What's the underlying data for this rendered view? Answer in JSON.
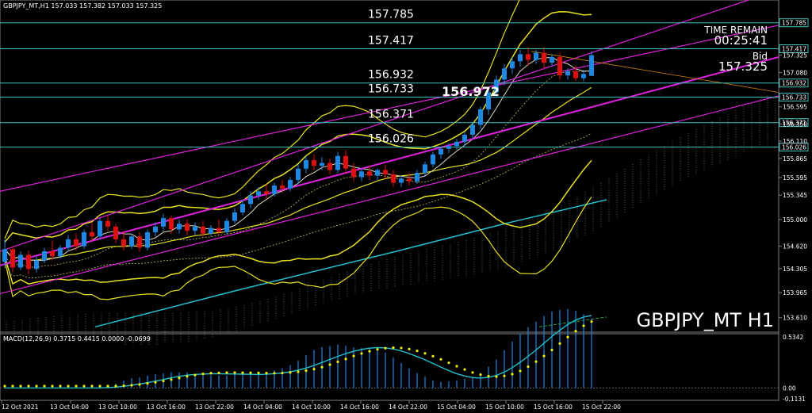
{
  "header": {
    "symbol_info": "GBPJPY_MT,H1  157.033 157.382 157.033 157.325"
  },
  "watermark": "GBPJPY_MT H1",
  "timer": {
    "label": "TIME REMAIN",
    "value": "00:25:41",
    "bid_label": "Bid",
    "bid_value": "157.325"
  },
  "current_label": "156.972",
  "levels": [
    {
      "price": 157.785,
      "label": "157.785",
      "tag": "157.785"
    },
    {
      "price": 157.417,
      "label": "157.417",
      "tag": "157.417"
    },
    {
      "price": 156.932,
      "label": "156.932",
      "tag": "156.932"
    },
    {
      "price": 156.733,
      "label": "156.733",
      "tag": "156.733"
    },
    {
      "price": 156.371,
      "label": "156.371",
      "tag": "156.371"
    },
    {
      "price": 156.026,
      "label": "156.026",
      "tag": "156.026"
    }
  ],
  "price_axis": [
    "157.325",
    "157.080",
    "156.595",
    "156.350",
    "156.110",
    "155.865",
    "155.595",
    "155.345",
    "155.000",
    "154.620",
    "154.305",
    "153.965",
    "153.610"
  ],
  "macd": {
    "label": "MACD(12,26,9) 0.3715 0.4415 0.0000 -0.0699",
    "axis": [
      "0.5342",
      "0.00",
      "-0.1131"
    ]
  },
  "time_axis": [
    "12 Oct 2021",
    "13 Oct 04:00",
    "13 Oct 10:00",
    "13 Oct 16:00",
    "13 Oct 22:00",
    "14 Oct 04:00",
    "14 Oct 10:00",
    "14 Oct 16:00",
    "14 Oct 22:00",
    "15 Oct 04:00",
    "15 Oct 10:00",
    "15 Oct 16:00",
    "15 Oct 22:00"
  ],
  "colors": {
    "background": "#000000",
    "level_line": "#40c0c0",
    "channel": "#e020e0",
    "bollinger": "#e8e020",
    "up_candle": "#1e88e5",
    "down_candle": "#e01010",
    "ma_teal": "#20c0d0",
    "macd_main": "#20c0d0",
    "macd_signal": "#f0f000"
  },
  "chart_data": {
    "type": "candlestick",
    "instrument": "GBPJPY_MT",
    "timeframe": "H1",
    "ylim": [
      153.45,
      157.95
    ],
    "candles": [
      {
        "o": 154.4,
        "h": 154.72,
        "c": 154.58,
        "l": 154.33
      },
      {
        "o": 154.58,
        "h": 154.62,
        "c": 154.32,
        "l": 154.25
      },
      {
        "o": 154.32,
        "h": 154.55,
        "c": 154.5,
        "l": 154.28
      },
      {
        "o": 154.5,
        "h": 154.56,
        "c": 154.3,
        "l": 154.22
      },
      {
        "o": 154.3,
        "h": 154.48,
        "c": 154.42,
        "l": 154.25
      },
      {
        "o": 154.42,
        "h": 154.6,
        "c": 154.55,
        "l": 154.38
      },
      {
        "o": 154.55,
        "h": 154.7,
        "c": 154.48,
        "l": 154.42
      },
      {
        "o": 154.48,
        "h": 154.64,
        "c": 154.6,
        "l": 154.45
      },
      {
        "o": 154.6,
        "h": 154.78,
        "c": 154.72,
        "l": 154.55
      },
      {
        "o": 154.72,
        "h": 154.8,
        "c": 154.62,
        "l": 154.56
      },
      {
        "o": 154.62,
        "h": 154.86,
        "c": 154.82,
        "l": 154.58
      },
      {
        "o": 154.82,
        "h": 154.95,
        "c": 154.76,
        "l": 154.7
      },
      {
        "o": 154.76,
        "h": 155.02,
        "c": 154.98,
        "l": 154.72
      },
      {
        "o": 154.98,
        "h": 155.06,
        "c": 154.9,
        "l": 154.84
      },
      {
        "o": 154.9,
        "h": 154.94,
        "c": 154.72,
        "l": 154.66
      },
      {
        "o": 154.72,
        "h": 154.84,
        "c": 154.62,
        "l": 154.56
      },
      {
        "o": 154.62,
        "h": 154.8,
        "c": 154.76,
        "l": 154.58
      },
      {
        "o": 154.76,
        "h": 154.82,
        "c": 154.6,
        "l": 154.54
      },
      {
        "o": 154.6,
        "h": 154.86,
        "c": 154.82,
        "l": 154.56
      },
      {
        "o": 154.82,
        "h": 154.96,
        "c": 154.9,
        "l": 154.76
      },
      {
        "o": 154.9,
        "h": 155.08,
        "c": 155.02,
        "l": 154.84
      },
      {
        "o": 155.02,
        "h": 155.06,
        "c": 154.86,
        "l": 154.8
      },
      {
        "o": 154.86,
        "h": 155.0,
        "c": 154.94,
        "l": 154.8
      },
      {
        "o": 154.94,
        "h": 155.0,
        "c": 154.84,
        "l": 154.78
      },
      {
        "o": 154.84,
        "h": 154.96,
        "c": 154.9,
        "l": 154.78
      },
      {
        "o": 154.9,
        "h": 154.98,
        "c": 154.8,
        "l": 154.76
      },
      {
        "o": 154.8,
        "h": 154.92,
        "c": 154.88,
        "l": 154.76
      },
      {
        "o": 154.88,
        "h": 155.0,
        "c": 154.82,
        "l": 154.78
      },
      {
        "o": 154.82,
        "h": 155.02,
        "c": 154.98,
        "l": 154.78
      },
      {
        "o": 154.98,
        "h": 155.16,
        "c": 155.1,
        "l": 154.94
      },
      {
        "o": 155.1,
        "h": 155.28,
        "c": 155.22,
        "l": 155.06
      },
      {
        "o": 155.22,
        "h": 155.4,
        "c": 155.34,
        "l": 155.16
      },
      {
        "o": 155.34,
        "h": 155.46,
        "c": 155.4,
        "l": 155.28
      },
      {
        "o": 155.4,
        "h": 155.5,
        "c": 155.36,
        "l": 155.3
      },
      {
        "o": 155.36,
        "h": 155.52,
        "c": 155.48,
        "l": 155.32
      },
      {
        "o": 155.48,
        "h": 155.56,
        "c": 155.44,
        "l": 155.38
      },
      {
        "o": 155.44,
        "h": 155.6,
        "c": 155.56,
        "l": 155.4
      },
      {
        "o": 155.56,
        "h": 155.78,
        "c": 155.72,
        "l": 155.5
      },
      {
        "o": 155.72,
        "h": 155.9,
        "c": 155.84,
        "l": 155.66
      },
      {
        "o": 155.84,
        "h": 155.92,
        "c": 155.76,
        "l": 155.7
      },
      {
        "o": 155.76,
        "h": 155.88,
        "c": 155.8,
        "l": 155.7
      },
      {
        "o": 155.8,
        "h": 155.86,
        "c": 155.7,
        "l": 155.64
      },
      {
        "o": 155.7,
        "h": 155.96,
        "c": 155.9,
        "l": 155.66
      },
      {
        "o": 155.9,
        "h": 155.98,
        "c": 155.72,
        "l": 155.66
      },
      {
        "o": 155.72,
        "h": 155.8,
        "c": 155.6,
        "l": 155.54
      },
      {
        "o": 155.6,
        "h": 155.72,
        "c": 155.68,
        "l": 155.54
      },
      {
        "o": 155.68,
        "h": 155.76,
        "c": 155.62,
        "l": 155.56
      },
      {
        "o": 155.62,
        "h": 155.72,
        "c": 155.7,
        "l": 155.56
      },
      {
        "o": 155.7,
        "h": 155.78,
        "c": 155.64,
        "l": 155.58
      },
      {
        "o": 155.64,
        "h": 155.7,
        "c": 155.52,
        "l": 155.46
      },
      {
        "o": 155.52,
        "h": 155.62,
        "c": 155.58,
        "l": 155.46
      },
      {
        "o": 155.58,
        "h": 155.66,
        "c": 155.54,
        "l": 155.48
      },
      {
        "o": 155.54,
        "h": 155.7,
        "c": 155.66,
        "l": 155.5
      },
      {
        "o": 155.66,
        "h": 155.82,
        "c": 155.78,
        "l": 155.62
      },
      {
        "o": 155.78,
        "h": 155.96,
        "c": 155.92,
        "l": 155.74
      },
      {
        "o": 155.92,
        "h": 156.02,
        "c": 156.0,
        "l": 155.86
      },
      {
        "o": 156.0,
        "h": 156.08,
        "c": 156.04,
        "l": 155.94
      },
      {
        "o": 156.04,
        "h": 156.14,
        "c": 156.1,
        "l": 155.98
      },
      {
        "o": 156.1,
        "h": 156.24,
        "c": 156.2,
        "l": 156.04
      },
      {
        "o": 156.2,
        "h": 156.38,
        "c": 156.34,
        "l": 156.14
      },
      {
        "o": 156.34,
        "h": 156.6,
        "c": 156.56,
        "l": 156.28
      },
      {
        "o": 156.56,
        "h": 156.86,
        "c": 156.8,
        "l": 156.48
      },
      {
        "o": 156.8,
        "h": 157.04,
        "c": 156.98,
        "l": 156.72
      },
      {
        "o": 156.98,
        "h": 157.2,
        "c": 157.14,
        "l": 156.9
      },
      {
        "o": 157.14,
        "h": 157.3,
        "c": 157.24,
        "l": 157.06
      },
      {
        "o": 157.24,
        "h": 157.4,
        "c": 157.34,
        "l": 157.16
      },
      {
        "o": 157.34,
        "h": 157.44,
        "c": 157.26,
        "l": 157.18
      },
      {
        "o": 157.26,
        "h": 157.4,
        "c": 157.36,
        "l": 157.2
      },
      {
        "o": 157.36,
        "h": 157.44,
        "c": 157.22,
        "l": 157.14
      },
      {
        "o": 157.22,
        "h": 157.34,
        "c": 157.3,
        "l": 157.16
      },
      {
        "o": 157.3,
        "h": 157.36,
        "c": 157.04,
        "l": 156.98
      },
      {
        "o": 157.04,
        "h": 157.14,
        "c": 157.1,
        "l": 156.98
      },
      {
        "o": 157.1,
        "h": 157.18,
        "c": 157.0,
        "l": 156.96
      },
      {
        "o": 157.0,
        "h": 157.12,
        "c": 157.06,
        "l": 156.96
      },
      {
        "o": 157.033,
        "h": 157.382,
        "c": 157.325,
        "l": 157.033
      }
    ],
    "macd_range": [
      -0.1131,
      0.5342
    ]
  }
}
